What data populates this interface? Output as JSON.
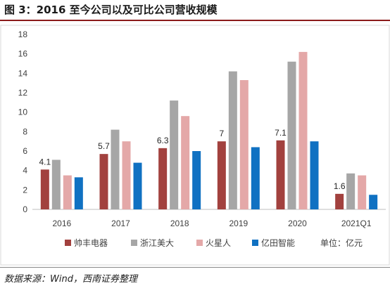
{
  "figure": {
    "title": "图 3：2016 至今公司以及可比公司营收规模",
    "source": "数据来源：Wind，西南证券整理"
  },
  "chart_data": {
    "type": "bar",
    "categories": [
      "2016",
      "2017",
      "2018",
      "2019",
      "2020",
      "2021Q1"
    ],
    "series": [
      {
        "name": "帅丰电器",
        "color": "#a2413e",
        "values": [
          4.1,
          5.7,
          6.3,
          7.0,
          7.1,
          1.6
        ],
        "labels": [
          "4.1",
          "5.7",
          "6.3",
          "7",
          "7.1",
          "1.6"
        ]
      },
      {
        "name": "浙江美大",
        "color": "#a6a6a6",
        "values": [
          5.1,
          8.2,
          11.2,
          14.2,
          15.2,
          3.7
        ]
      },
      {
        "name": "火星人",
        "color": "#e4a8a8",
        "values": [
          3.5,
          7.0,
          9.6,
          13.3,
          16.2,
          3.5
        ]
      },
      {
        "name": "亿田智能",
        "color": "#1071c2",
        "values": [
          3.3,
          4.8,
          6.0,
          6.4,
          7.0,
          1.5
        ]
      }
    ],
    "ylim": [
      0,
      18
    ],
    "yticks": [
      0,
      2,
      4,
      6,
      8,
      10,
      12,
      14,
      16,
      18
    ],
    "grid": false,
    "legend_position": "bottom",
    "unit_note": "单位：亿元"
  }
}
